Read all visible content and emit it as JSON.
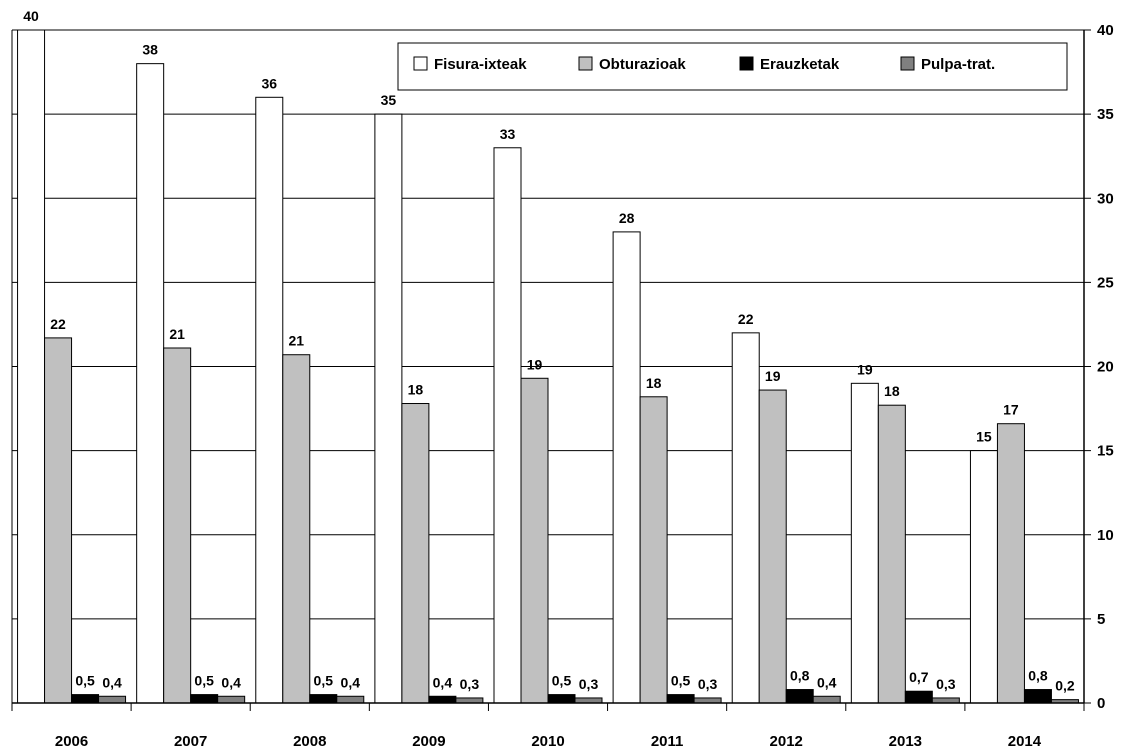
{
  "chart_data": {
    "type": "bar",
    "categories": [
      "2006",
      "2007",
      "2008",
      "2009",
      "2010",
      "2011",
      "2012",
      "2013",
      "2014"
    ],
    "series": [
      {
        "name": "Fisura-ixteak",
        "color": "#ffffff",
        "values": [
          40,
          38,
          36,
          35,
          33,
          28,
          22,
          19,
          15
        ],
        "labels": [
          "40",
          "38",
          "36",
          "35",
          "33",
          "28",
          "22",
          "19",
          "15"
        ]
      },
      {
        "name": "Obturazioak",
        "color": "#c0c0c0",
        "values": [
          21.7,
          21.1,
          20.7,
          17.8,
          19.3,
          18.2,
          18.6,
          17.7,
          16.6
        ],
        "labels": [
          "22",
          "21",
          "21",
          "18",
          "19",
          "18",
          "19",
          "18",
          "17"
        ]
      },
      {
        "name": "Erauzketak",
        "color": "#000000",
        "values": [
          0.5,
          0.5,
          0.5,
          0.4,
          0.5,
          0.5,
          0.8,
          0.7,
          0.8
        ],
        "labels": [
          "0,5",
          "0,5",
          "0,5",
          "0,4",
          "0,5",
          "0,5",
          "0,8",
          "0,7",
          "0,8"
        ]
      },
      {
        "name": "Pulpa-trat.",
        "color": "#808080",
        "values": [
          0.4,
          0.4,
          0.4,
          0.3,
          0.3,
          0.3,
          0.4,
          0.3,
          0.2
        ],
        "labels": [
          "0,4",
          "0,4",
          "0,4",
          "0,3",
          "0,3",
          "0,3",
          "0,4",
          "0,3",
          "0,2"
        ]
      }
    ],
    "y_ticks": [
      "0",
      "5",
      "10",
      "15",
      "20",
      "25",
      "30",
      "35",
      "40"
    ],
    "ylim": [
      0,
      40
    ],
    "y_axis_side": "right",
    "grid": true,
    "legend_position": "top-right"
  }
}
